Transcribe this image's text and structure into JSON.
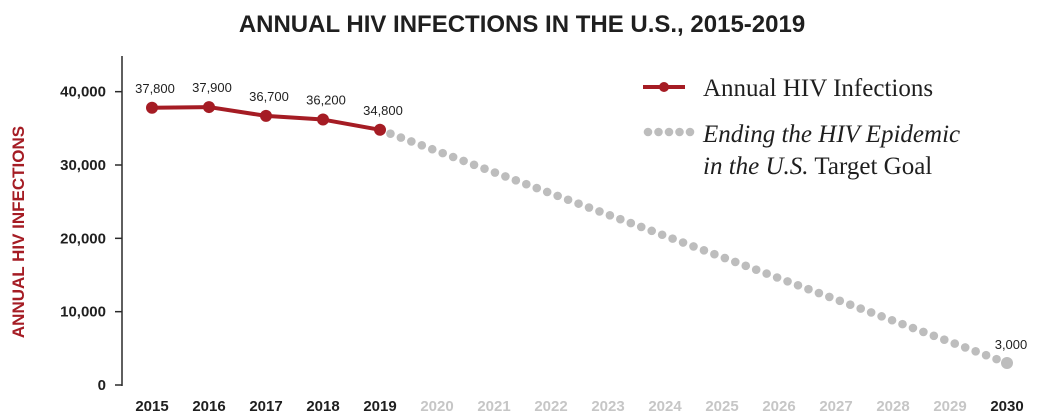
{
  "chart_data": {
    "type": "line",
    "title": "ANNUAL HIV INFECTIONS IN THE U.S., 2015-2019",
    "ylabel": "ANNUAL HIV INFECTIONS",
    "xlabel": "",
    "ylim": [
      0,
      45000
    ],
    "xlim": [
      2015,
      2030
    ],
    "yticks": [
      0,
      10000,
      20000,
      30000,
      40000
    ],
    "ytick_labels": [
      "0",
      "10,000",
      "20,000",
      "30,000",
      "40,000"
    ],
    "categories": [
      "2015",
      "2016",
      "2017",
      "2018",
      "2019",
      "2020",
      "2021",
      "2022",
      "2023",
      "2024",
      "2025",
      "2026",
      "2027",
      "2028",
      "2029",
      "2030"
    ],
    "grid": false,
    "legend_position": "top-right",
    "series": [
      {
        "name": "Annual HIV Infections",
        "color": "#a51c24",
        "style": "solid-with-markers",
        "x": [
          2015,
          2016,
          2017,
          2018,
          2019
        ],
        "y": [
          37800,
          37900,
          36700,
          36200,
          34800
        ],
        "labels": [
          "37,800",
          "37,900",
          "36,700",
          "36,200",
          "34,800"
        ]
      },
      {
        "name": "Ending the HIV Epidemic in the U.S. Target Goal",
        "color": "#bdbdbd",
        "style": "dotted",
        "x": [
          2019,
          2030
        ],
        "y": [
          34800,
          3000
        ],
        "labels": [
          "",
          "3,000"
        ]
      }
    ],
    "legend": {
      "annual_label": "Annual HIV Infections",
      "target_italic_1": "Ending the HIV Epidemic",
      "target_italic_2": "in the U.S.",
      "target_plain_2": "Target Goal"
    }
  }
}
